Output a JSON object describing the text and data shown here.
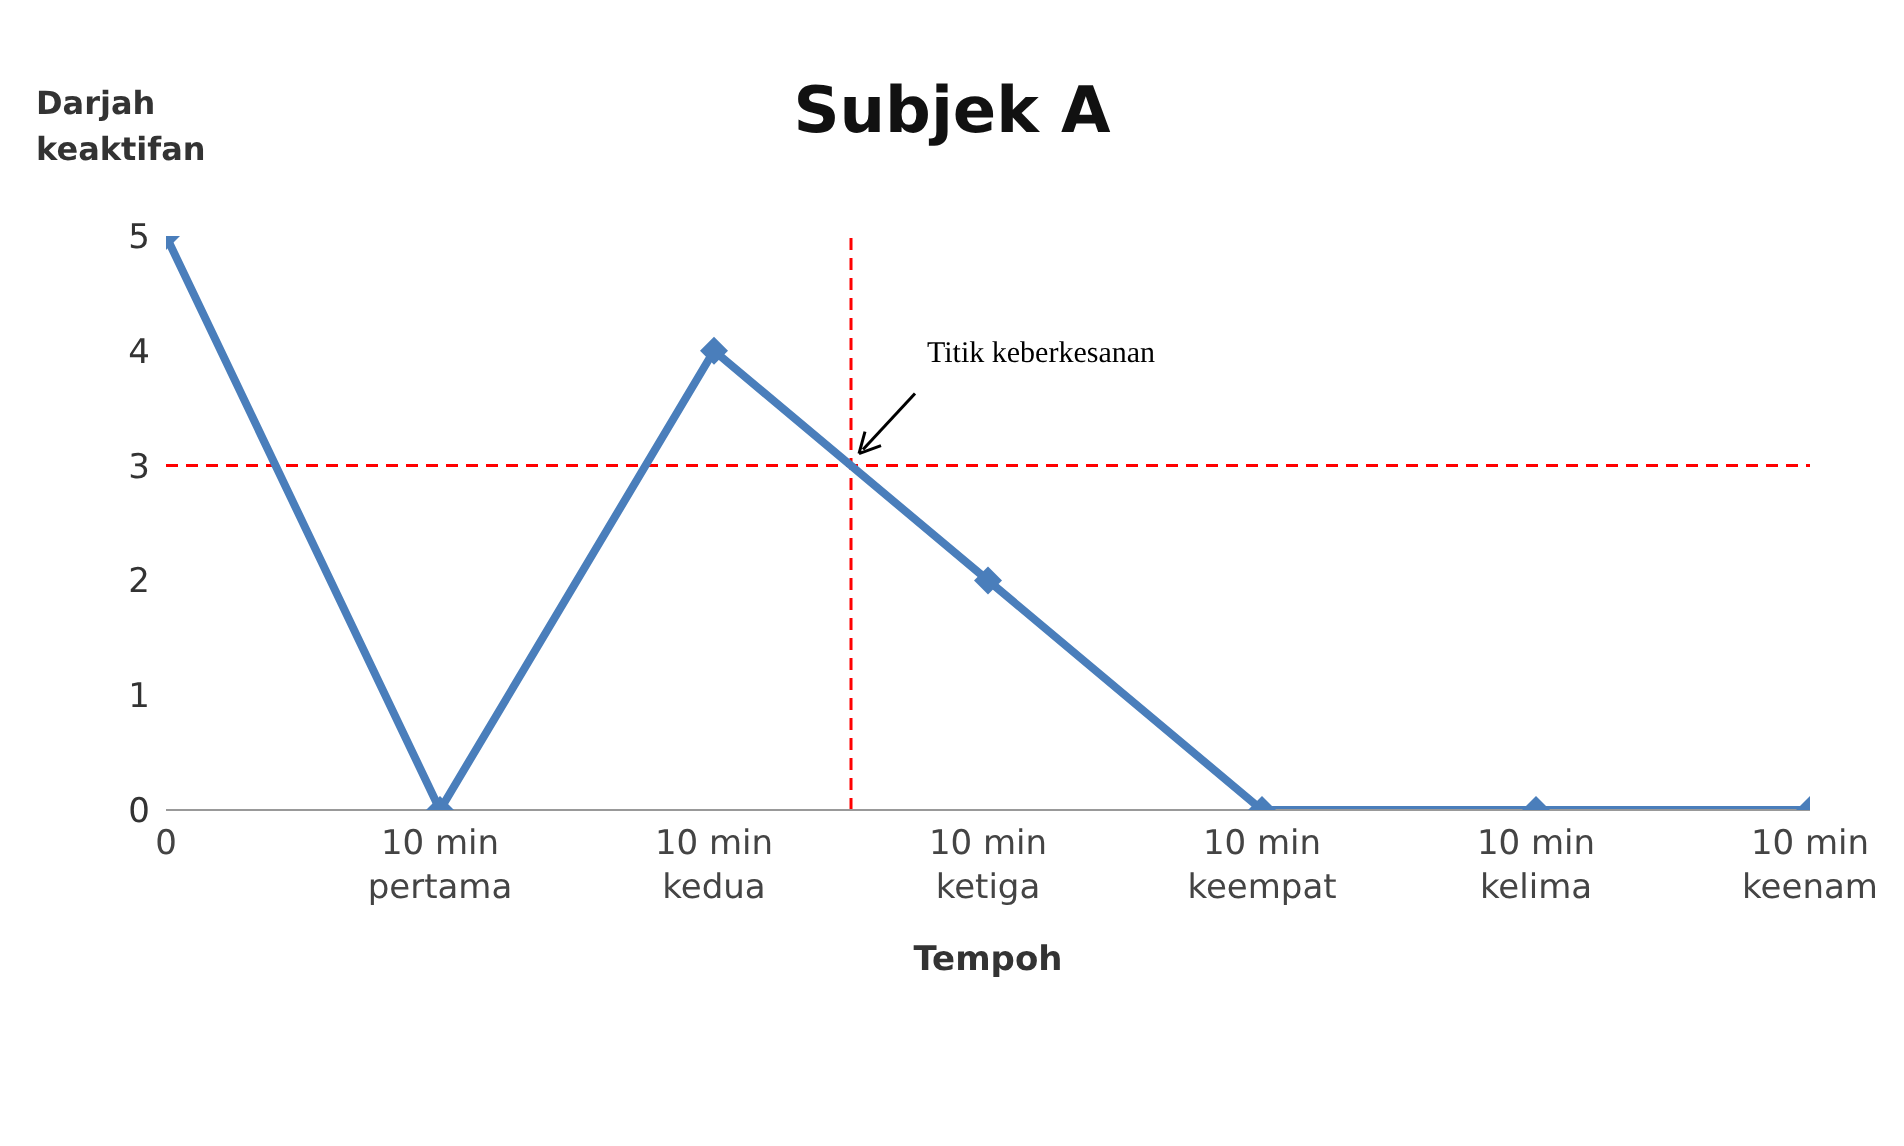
{
  "chart_data": {
    "type": "line",
    "title": "Subjek A",
    "xlabel": "Tempoh",
    "ylabel": "Darjah keaktifan",
    "categories": [
      "0",
      "10 min pertama",
      "10 min kedua",
      "10 min ketiga",
      "10 min keempat",
      "10 min kelima",
      "10 min keenam"
    ],
    "series": [
      {
        "color": "#4a7ebb",
        "values": [
          5,
          0,
          4,
          2,
          0,
          0,
          0
        ]
      }
    ],
    "ylim": [
      0,
      5
    ],
    "yticks": [
      0,
      1,
      2,
      3,
      4,
      5
    ],
    "grid": false,
    "legend": false,
    "marker": "diamond",
    "line_style": "solid",
    "ref_lines": [
      {
        "axis": "y",
        "value": 3,
        "color": "#ff0000",
        "line_style": "dashed"
      }
    ],
    "annotations": [
      "Titik keberkesanan"
    ]
  }
}
